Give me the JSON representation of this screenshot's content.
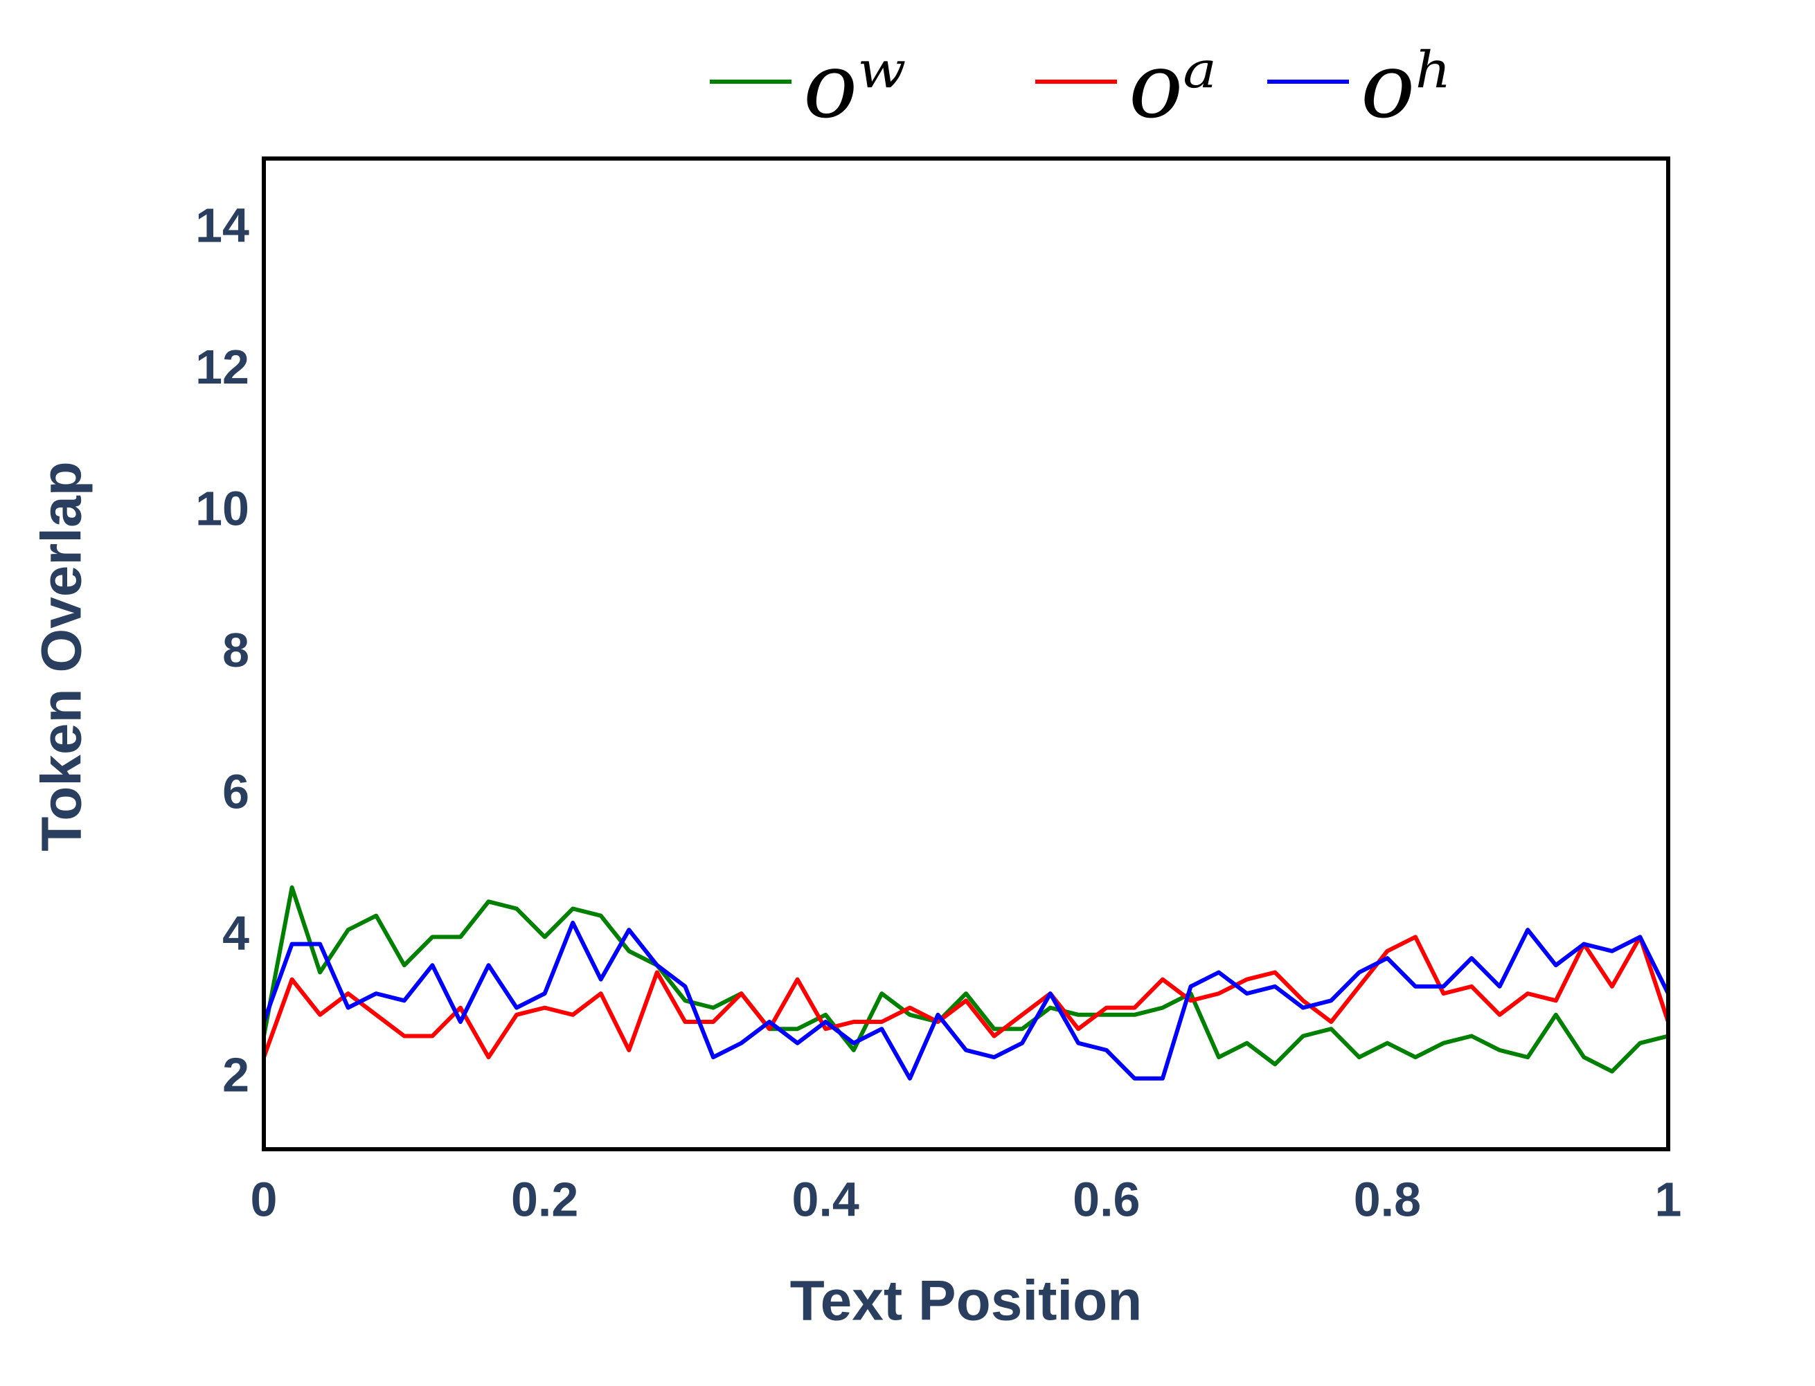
{
  "chart_data": {
    "type": "line",
    "x_label": "Text Position",
    "y_label": "Token Overlap",
    "x": [
      0,
      0.02,
      0.04,
      0.06,
      0.08,
      0.1,
      0.12,
      0.14,
      0.16,
      0.18,
      0.2,
      0.22,
      0.24,
      0.26,
      0.28,
      0.3,
      0.32,
      0.34,
      0.36,
      0.38,
      0.4,
      0.42,
      0.44,
      0.46,
      0.48,
      0.5,
      0.52,
      0.54,
      0.56,
      0.58,
      0.6,
      0.62,
      0.64,
      0.66,
      0.68,
      0.7,
      0.72,
      0.74,
      0.76,
      0.78,
      0.8,
      0.82,
      0.84,
      0.86,
      0.88,
      0.9,
      0.92,
      0.94,
      0.96,
      0.98,
      1
    ],
    "series": [
      {
        "name": "oʷ",
        "color": "#008000",
        "values": [
          2.6,
          4.7,
          3.5,
          4.1,
          4.3,
          3.6,
          4.0,
          4.0,
          4.5,
          4.4,
          4.0,
          4.4,
          4.3,
          3.8,
          3.6,
          3.1,
          3.0,
          3.2,
          2.7,
          2.7,
          2.9,
          2.4,
          3.2,
          2.9,
          2.8,
          3.2,
          2.7,
          2.7,
          3.0,
          2.9,
          2.9,
          2.9,
          3.0,
          3.2,
          2.3,
          2.5,
          2.2,
          2.6,
          2.7,
          2.3,
          2.5,
          2.3,
          2.5,
          2.6,
          2.4,
          2.3,
          2.9,
          2.3,
          2.1,
          2.5,
          2.6
        ]
      },
      {
        "name": "oᵃ",
        "color": "#ff0000",
        "values": [
          2.3,
          3.4,
          2.9,
          3.2,
          2.9,
          2.6,
          2.6,
          3.0,
          2.3,
          2.9,
          3.0,
          2.9,
          3.2,
          2.4,
          3.5,
          2.8,
          2.8,
          3.2,
          2.7,
          3.4,
          2.7,
          2.8,
          2.8,
          3.0,
          2.8,
          3.1,
          2.6,
          2.9,
          3.2,
          2.7,
          3.0,
          3.0,
          3.4,
          3.1,
          3.2,
          3.4,
          3.5,
          3.1,
          2.8,
          3.3,
          3.8,
          4.0,
          3.2,
          3.3,
          2.9,
          3.2,
          3.1,
          3.9,
          3.3,
          4.0,
          2.8
        ]
      },
      {
        "name": "oʰ",
        "color": "#0000ff",
        "values": [
          2.8,
          3.9,
          3.9,
          3.0,
          3.2,
          3.1,
          3.6,
          2.8,
          3.6,
          3.0,
          3.2,
          4.2,
          3.4,
          4.1,
          3.6,
          3.3,
          2.3,
          2.5,
          2.8,
          2.5,
          2.8,
          2.5,
          2.7,
          2.0,
          2.9,
          2.4,
          2.3,
          2.5,
          3.2,
          2.5,
          2.4,
          2.0,
          2.0,
          3.3,
          3.5,
          3.2,
          3.3,
          3.0,
          3.1,
          3.5,
          3.7,
          3.3,
          3.3,
          3.7,
          3.3,
          4.1,
          3.6,
          3.9,
          3.8,
          4.0,
          3.2
        ]
      }
    ],
    "xlim": [
      0,
      1
    ],
    "xticks": [
      0,
      0.2,
      0.4,
      0.6,
      0.8,
      1
    ],
    "ylim": [
      1,
      15
    ],
    "yticks": [
      2,
      4,
      6,
      8,
      10,
      12,
      14
    ],
    "grid": false,
    "legend_position": "top"
  }
}
